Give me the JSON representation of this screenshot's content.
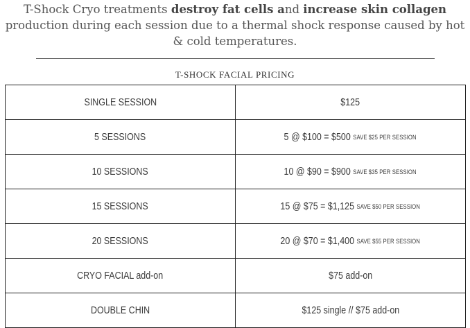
{
  "intro": {
    "part1": "T-Shock Cryo treatments ",
    "bold1": "destroy fat cells a",
    "part2": "nd ",
    "bold2": "increase skin collagen",
    "part3": " production during each session due to a thermal shock response caused by hot & cold temperatures."
  },
  "table_title": "T-SHOCK FACIAL PRICING",
  "rows": [
    {
      "service": "SINGLE SESSION",
      "price": "$125",
      "note": ""
    },
    {
      "service": "5 SESSIONS",
      "price": "5 @ $100 = $500",
      "note": "SAVE $25 PER SESSION"
    },
    {
      "service": "10 SESSIONS",
      "price": "10 @ $90 = $900",
      "note": "SAVE $35 PER SESSION"
    },
    {
      "service": "15 SESSIONS",
      "price": "15 @ $75 = $1,125",
      "note": "SAVE $50 PER SESSION"
    },
    {
      "service": "20 SESSIONS",
      "price": "20 @ $70 = $1,400",
      "note": "SAVE $55 PER SESSION"
    },
    {
      "service": "CRYO FACIAL add-on",
      "price": "$75 add-on",
      "note": ""
    },
    {
      "service": "DOUBLE CHIN",
      "price": "$125 single // $75 add-on",
      "note": ""
    }
  ]
}
